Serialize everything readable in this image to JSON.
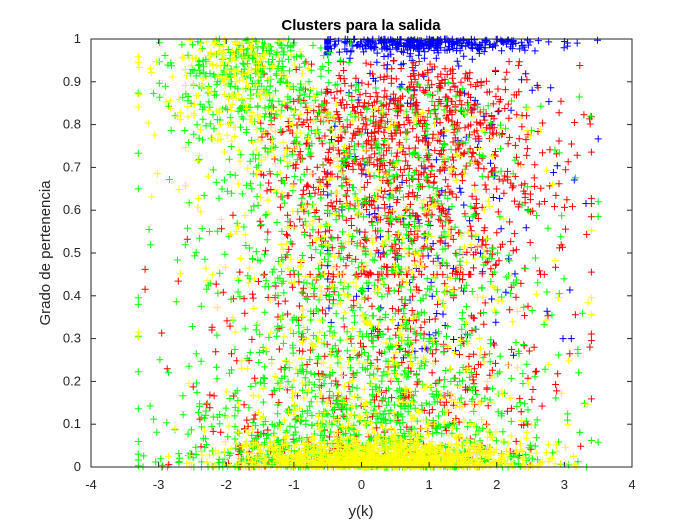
{
  "chart_data": {
    "type": "scatter",
    "title": "Clusters para  la salida",
    "xlabel": "y(k)",
    "ylabel": "Grado de pertenencia",
    "xlim": [
      -4,
      4
    ],
    "ylim": [
      0,
      1
    ],
    "xticks": [
      "-4",
      "-3",
      "-2",
      "-1",
      "0",
      "1",
      "2",
      "3",
      "4"
    ],
    "yticks": [
      "0",
      "0.1",
      "0.2",
      "0.3",
      "0.4",
      "0.5",
      "0.6",
      "0.7",
      "0.8",
      "0.9",
      "1"
    ],
    "marker": "+",
    "grid": false,
    "legend": "none",
    "series": [
      {
        "color": "#0000ff",
        "approx_points": 500,
        "x_range": [
          -0.5,
          3.5
        ],
        "concentration": "membership near 1 for y(k) around 0 to 3"
      },
      {
        "color": "#ff0000",
        "approx_points": 1500,
        "x_range": [
          -3.2,
          3.4
        ],
        "concentration": "high membership near y(k) 0 to 2, spreading down to 0"
      },
      {
        "color": "#00ff00",
        "approx_points": 2000,
        "x_range": [
          -3.3,
          3.5
        ],
        "concentration": "bulk at low membership, high membership near y(k) -2 to -1"
      },
      {
        "color": "#ffff00",
        "approx_points": 2000,
        "x_range": [
          -3.3,
          3.4
        ],
        "concentration": "dense near 0 for y(k) -1 to 2, high membership near -2.5 to -1"
      }
    ]
  }
}
